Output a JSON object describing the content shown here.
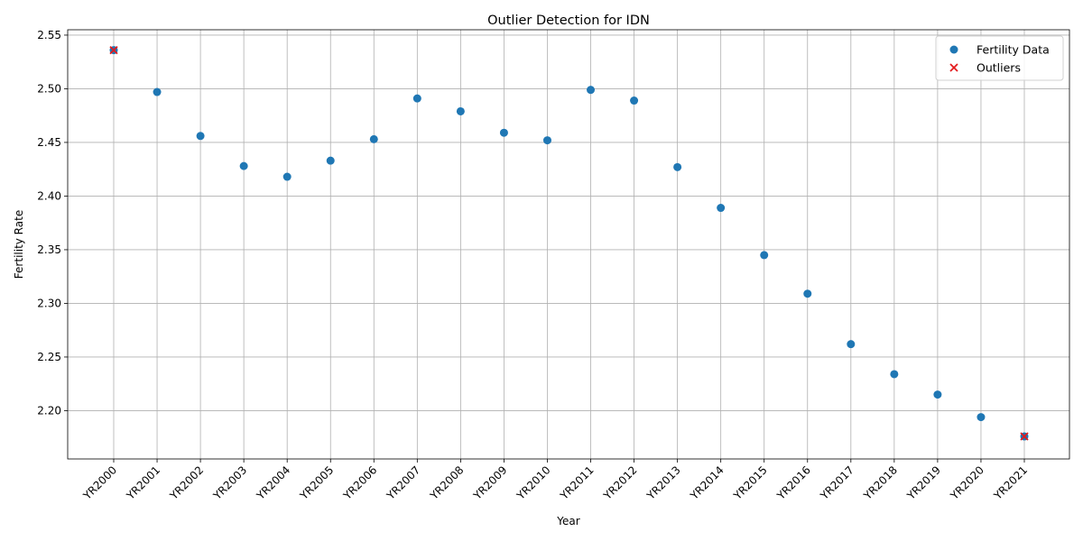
{
  "chart_data": {
    "type": "scatter",
    "title": "Outlier Detection for IDN",
    "xlabel": "Year",
    "ylabel": "Fertility Rate",
    "categories": [
      "YR2000",
      "YR2001",
      "YR2002",
      "YR2003",
      "YR2004",
      "YR2005",
      "YR2006",
      "YR2007",
      "YR2008",
      "YR2009",
      "YR2010",
      "YR2011",
      "YR2012",
      "YR2013",
      "YR2014",
      "YR2015",
      "YR2016",
      "YR2017",
      "YR2018",
      "YR2019",
      "YR2020",
      "YR2021"
    ],
    "ylim": [
      2.155,
      2.555
    ],
    "yticks": [
      2.2,
      2.25,
      2.3,
      2.35,
      2.4,
      2.45,
      2.5,
      2.55
    ],
    "ytick_labels": [
      "2.20",
      "2.25",
      "2.30",
      "2.35",
      "2.40",
      "2.45",
      "2.50",
      "2.55"
    ],
    "grid": true,
    "legend_position": "top-right",
    "series": [
      {
        "name": "Fertility Data",
        "marker": "circle",
        "color": "#1f77b4",
        "values": [
          2.536,
          2.497,
          2.456,
          2.428,
          2.418,
          2.433,
          2.453,
          2.491,
          2.479,
          2.459,
          2.452,
          2.499,
          2.489,
          2.427,
          2.389,
          2.345,
          2.309,
          2.262,
          2.234,
          2.215,
          2.194,
          2.176
        ]
      },
      {
        "name": "Outliers",
        "marker": "x",
        "color": "#e31a1c",
        "points": [
          {
            "x": "YR2000",
            "y": 2.536
          },
          {
            "x": "YR2021",
            "y": 2.176
          }
        ]
      }
    ]
  }
}
